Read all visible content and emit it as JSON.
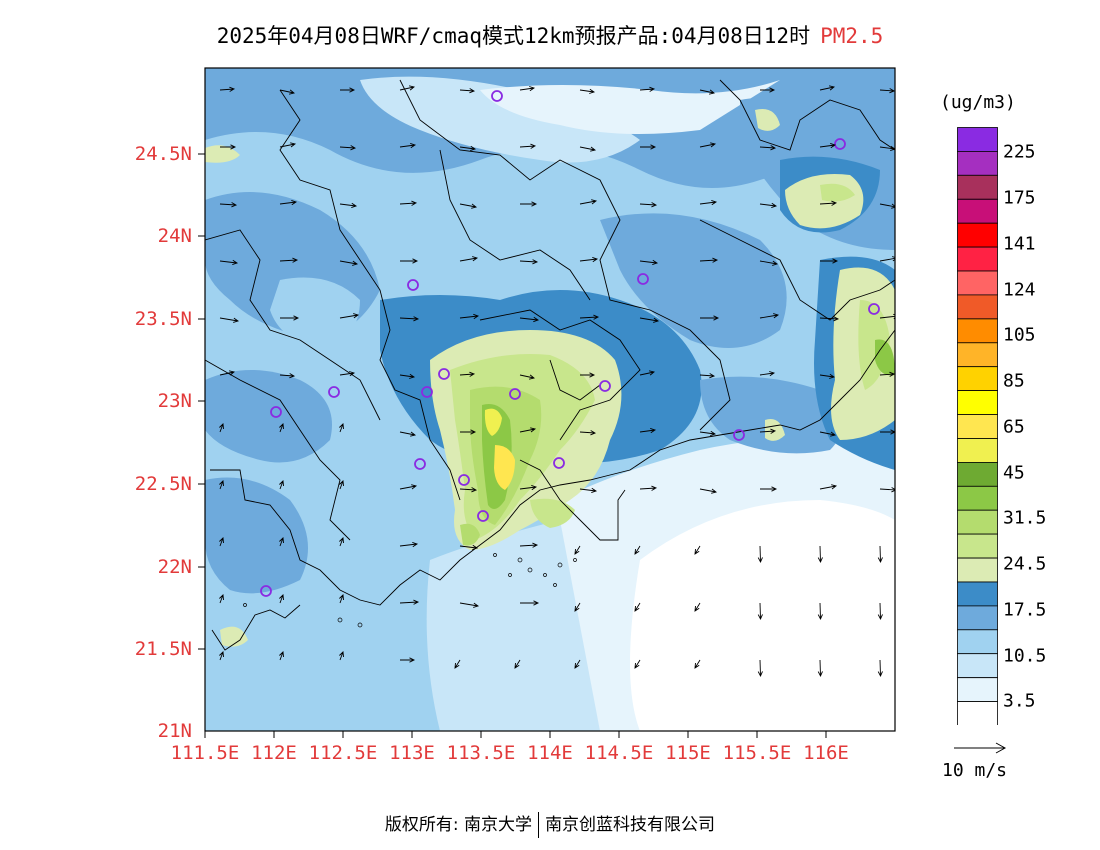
{
  "title": {
    "main": "2025年04月08日WRF/cmaq模式12km预报产品:04月08日12时",
    "variable": "PM2.5"
  },
  "lat_labels": [
    "24.5N",
    "24N",
    "23.5N",
    "23N",
    "22.5N",
    "22N",
    "21.5N",
    "21N"
  ],
  "lon_labels": [
    "111.5E",
    "112E",
    "112.5E",
    "113E",
    "113.5E",
    "114E",
    "114.5E",
    "115E",
    "115.5E",
    "116E"
  ],
  "colorbar": {
    "unit": "(ug/m3)",
    "labels": [
      "225",
      "175",
      "141",
      "124",
      "105",
      "85",
      "65",
      "45",
      "31.5",
      "24.5",
      "17.5",
      "10.5",
      "3.5"
    ],
    "colors": [
      "#8a2be2",
      "#a52fc0",
      "#a8305c",
      "#c80f78",
      "#ff0000",
      "#ff2244",
      "#ff6464",
      "#f05a28",
      "#ff8c00",
      "#ffb428",
      "#ffd200",
      "#ffff00",
      "#ffe650",
      "#f0f050",
      "#6eaa32",
      "#8cc846",
      "#b4dc6e",
      "#c8e68c",
      "#dcebb4",
      "#3c8cc8",
      "#6eaadc",
      "#a0d2f0",
      "#c8e6f8",
      "#e6f4fc",
      "#ffffff"
    ]
  },
  "wind_reference": "10 m/s",
  "copyright": {
    "left": "版权所有: 南京大学",
    "right": "南京创蓝科技有限公司"
  }
}
